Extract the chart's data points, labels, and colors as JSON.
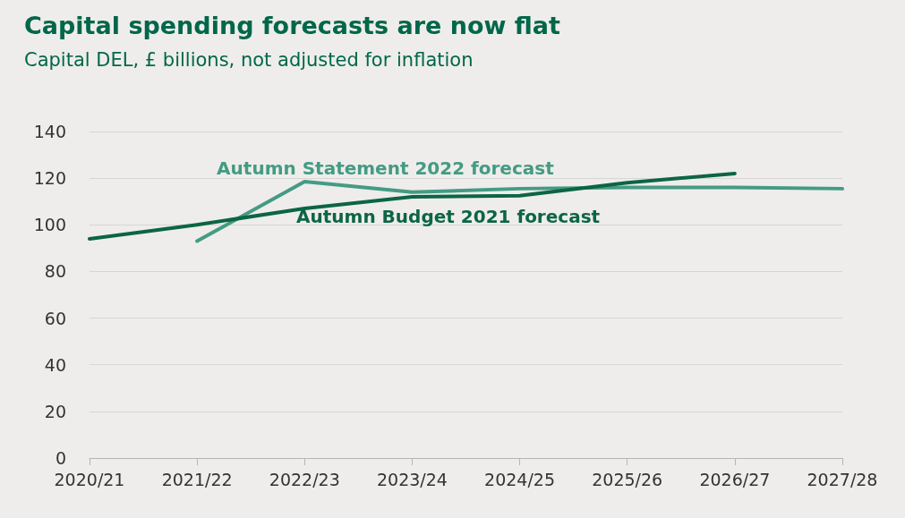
{
  "chart_data": {
    "type": "line",
    "title": "Capital spending forecasts are now flat",
    "subtitle": "Capital DEL, £ billions, not adjusted for inflation",
    "categories": [
      "2020/21",
      "2021/22",
      "2022/23",
      "2023/24",
      "2024/25",
      "2025/26",
      "2026/27",
      "2027/28"
    ],
    "series": [
      {
        "name": "Autumn Statement 2022 forecast",
        "color": "#449b83",
        "values": [
          null,
          93,
          118.5,
          114,
          115.5,
          116,
          116,
          115.5
        ]
      },
      {
        "name": "Autumn Budget 2021 forecast",
        "color": "#0c6545",
        "values": [
          94,
          100,
          107,
          112,
          112.5,
          118,
          122,
          null
        ]
      }
    ],
    "ylim": [
      0,
      140
    ],
    "yticks": [
      0,
      20,
      40,
      60,
      80,
      100,
      120,
      140
    ],
    "grid": "y",
    "legend": false,
    "marker": "none",
    "line_style": "solid"
  }
}
